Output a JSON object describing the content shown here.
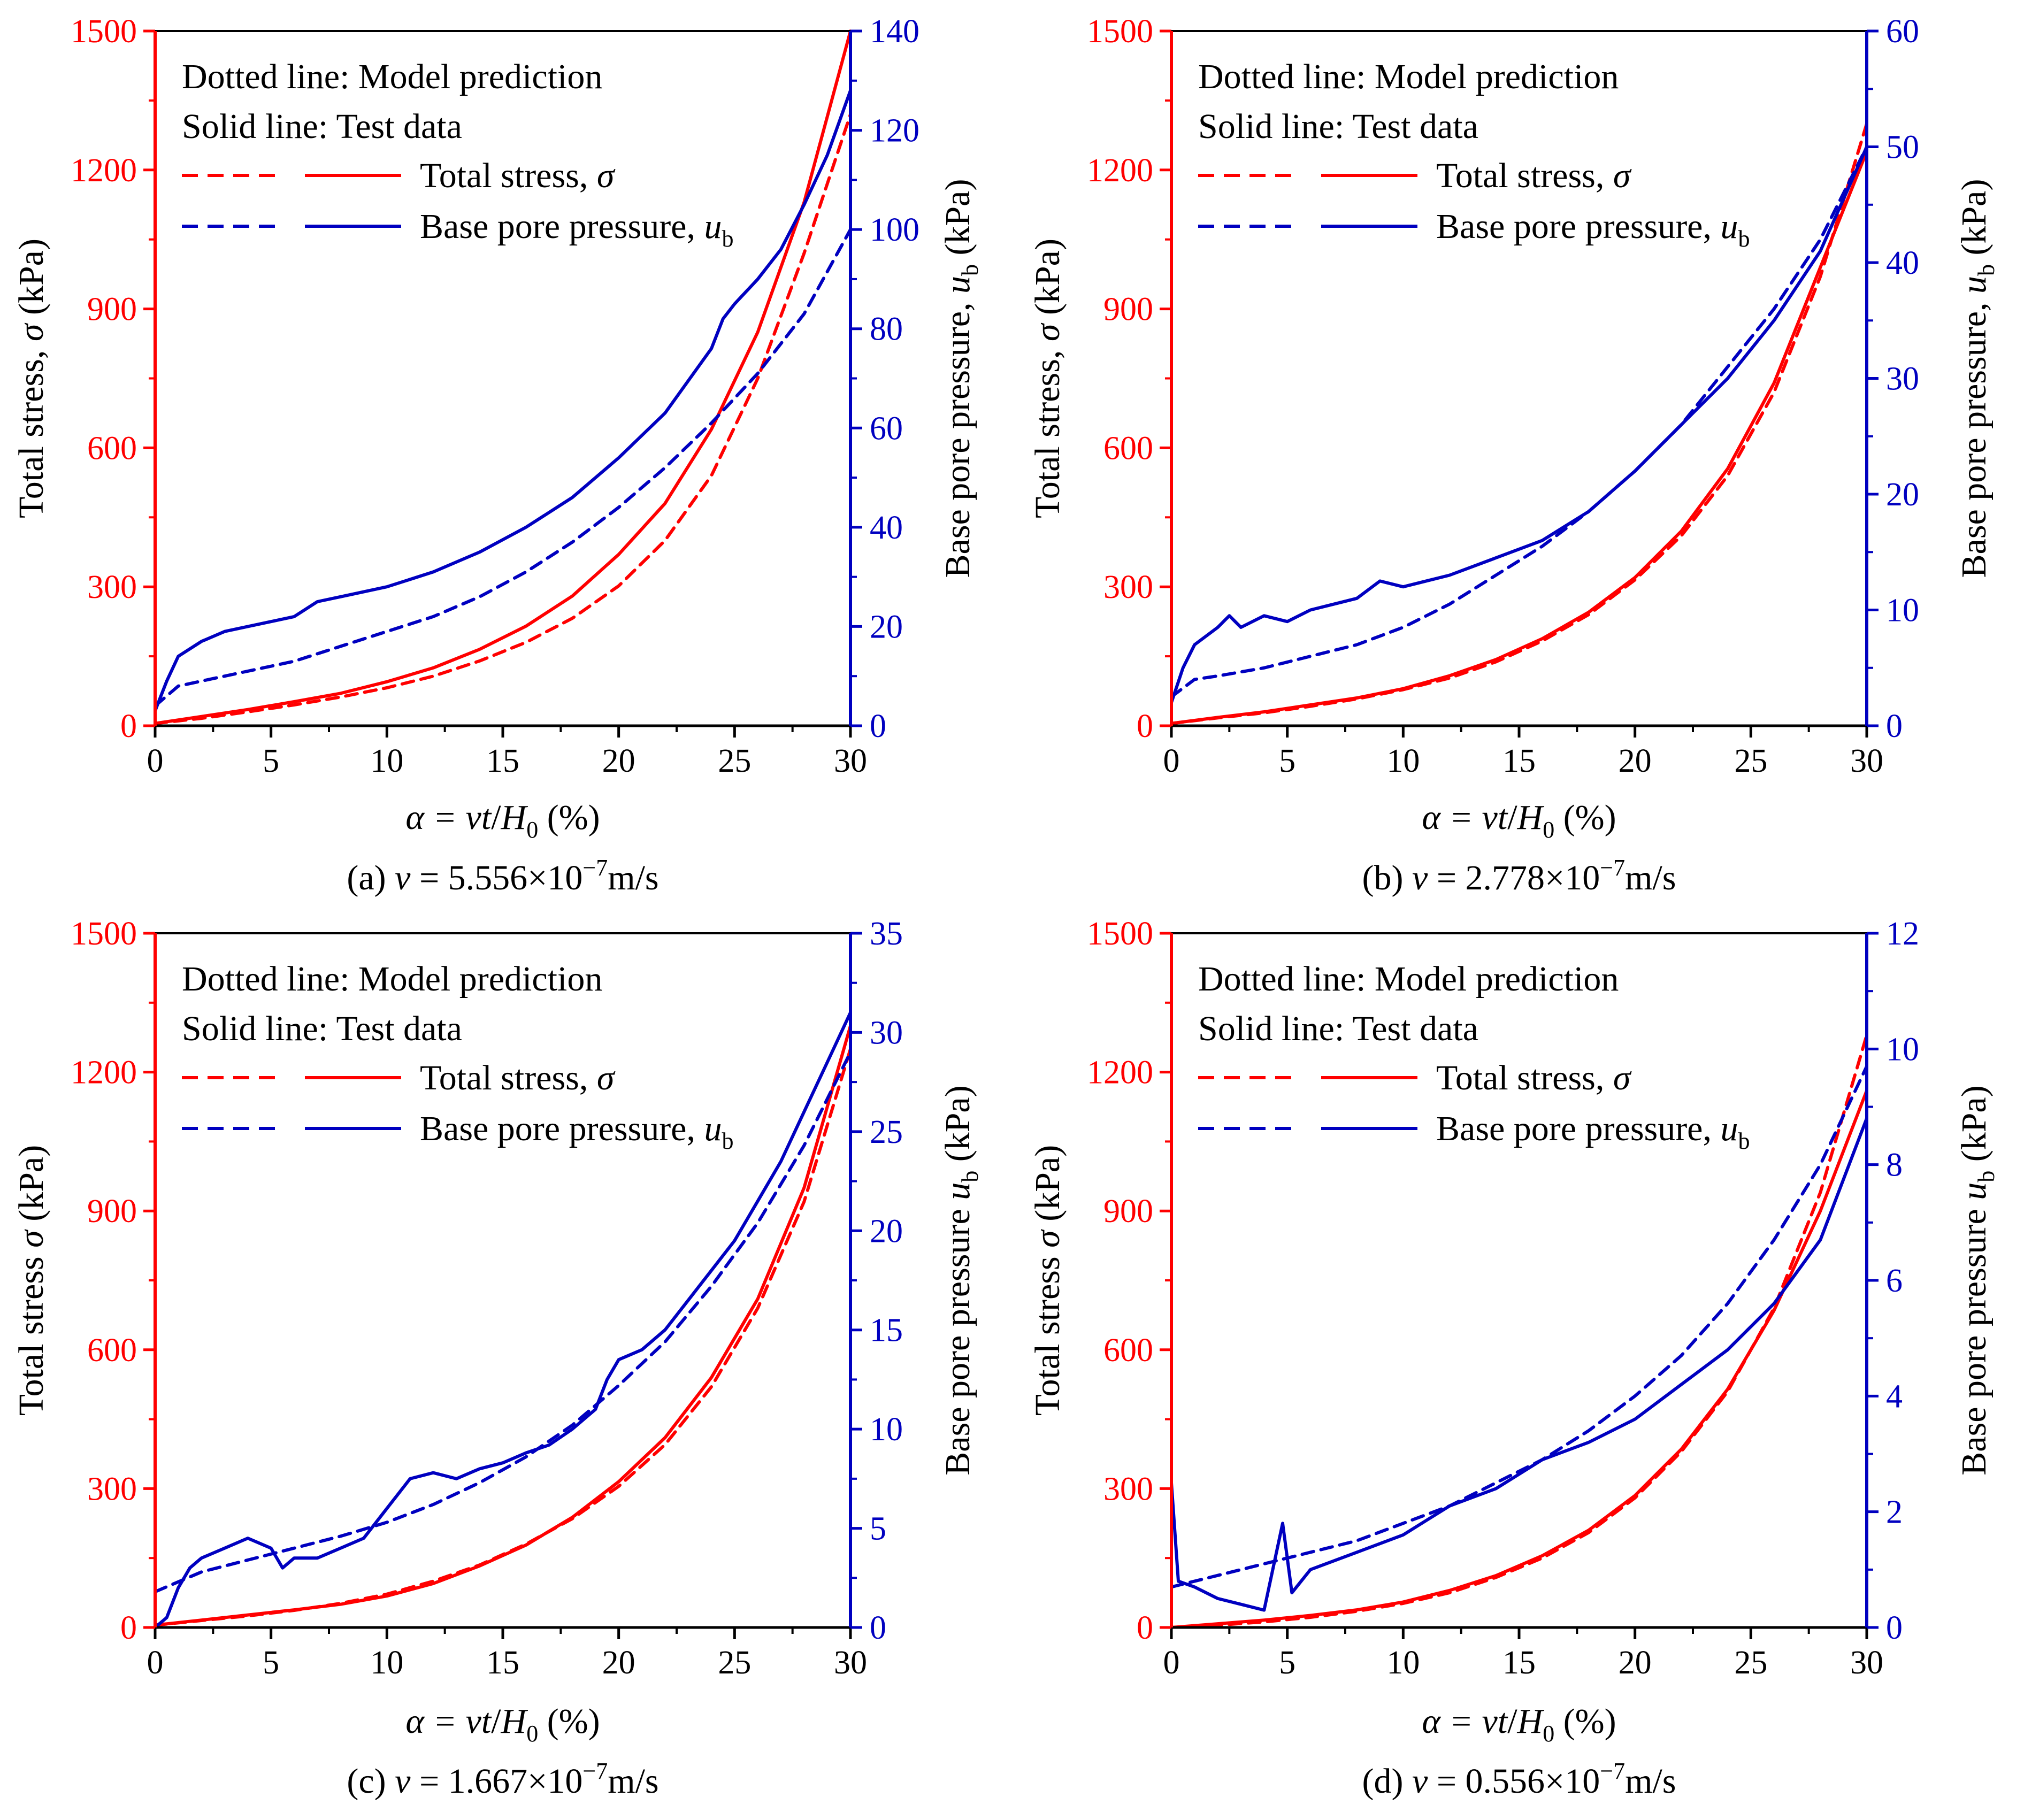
{
  "colors": {
    "stress": "#ff0000",
    "pore": "#0000c0",
    "axis": "#000000"
  },
  "labels": {
    "x_axis_lhs": "α = ",
    "x_axis_v": "vt",
    "x_axis_slash": "/",
    "x_axis_H": "H",
    "x_axis_sub": "0",
    "x_axis_unit": " (%)",
    "y_left_prefix": "Total stress",
    "y_left_sym": "σ",
    "y_left_unit": " (kPa)",
    "y_right_prefix": "Base pore pressure",
    "y_right_sym": "u",
    "y_right_sub": "b",
    "y_right_unit": " (kPa)",
    "legend_dotted": "Dotted line: Model prediction",
    "legend_solid": "Solid line: Test data",
    "legend_stress": "Total stress, ",
    "legend_stress_sym": "σ",
    "legend_pore": "Base pore pressure, ",
    "legend_pore_sym": "u",
    "legend_pore_sub": "b"
  },
  "chart_data": [
    {
      "type": "line",
      "panel": "a",
      "caption_prefix": "(a) ",
      "caption_v": "v",
      "caption_value": " = 5.556×10",
      "caption_exp": "−7",
      "caption_unit": "m/s",
      "y_left_comma": true,
      "xlim": [
        0,
        30
      ],
      "xticks": [
        0,
        5,
        10,
        15,
        20,
        25,
        30
      ],
      "ylim_left": [
        0,
        1500
      ],
      "yticks_left": [
        0,
        300,
        600,
        900,
        1200,
        1500
      ],
      "ylim_right": [
        0,
        140
      ],
      "yticks_right": [
        0,
        20,
        40,
        60,
        80,
        100,
        120,
        140
      ],
      "series": [
        {
          "name": "Total stress model",
          "axis": "left",
          "style": "dashed",
          "color": "stress",
          "x": [
            0,
            2,
            4,
            6,
            8,
            10,
            12,
            14,
            16,
            18,
            20,
            22,
            24,
            26,
            28,
            30
          ],
          "y": [
            5,
            16,
            30,
            45,
            62,
            82,
            107,
            140,
            180,
            232,
            302,
            400,
            540,
            750,
            1020,
            1320
          ]
        },
        {
          "name": "Total stress test",
          "axis": "left",
          "style": "solid",
          "color": "stress",
          "x": [
            0,
            2,
            4,
            6,
            8,
            10,
            12,
            14,
            16,
            18,
            20,
            22,
            24,
            26,
            28,
            30
          ],
          "y": [
            5,
            20,
            35,
            52,
            70,
            95,
            125,
            165,
            215,
            280,
            370,
            480,
            640,
            850,
            1130,
            1500
          ]
        },
        {
          "name": "Base pore pressure model",
          "axis": "right",
          "style": "dashed",
          "color": "pore",
          "x": [
            0,
            1,
            2,
            4,
            6,
            8,
            10,
            12,
            14,
            16,
            18,
            20,
            22,
            24,
            26,
            28,
            30
          ],
          "y": [
            4,
            8,
            9,
            11,
            13,
            16,
            19,
            22,
            26,
            31,
            37,
            44,
            52,
            61,
            71,
            83,
            100
          ]
        },
        {
          "name": "Base pore pressure test",
          "axis": "right",
          "style": "solid",
          "color": "pore",
          "x": [
            0,
            0.5,
            1,
            2,
            3,
            4,
            5,
            6,
            7,
            8,
            10,
            12,
            14,
            16,
            18,
            20,
            22,
            24,
            24.5,
            25,
            26,
            27,
            28,
            29,
            30
          ],
          "y": [
            3,
            9,
            14,
            17,
            19,
            20,
            21,
            22,
            25,
            26,
            28,
            31,
            35,
            40,
            46,
            54,
            63,
            76,
            82,
            85,
            90,
            96,
            105,
            115,
            128
          ]
        }
      ]
    },
    {
      "type": "line",
      "panel": "b",
      "caption_prefix": "(b) ",
      "caption_v": "v",
      "caption_value": " = 2.778×10",
      "caption_exp": "−7",
      "caption_unit": "m/s",
      "y_left_comma": true,
      "xlim": [
        0,
        30
      ],
      "xticks": [
        0,
        5,
        10,
        15,
        20,
        25,
        30
      ],
      "ylim_left": [
        0,
        1500
      ],
      "yticks_left": [
        0,
        300,
        600,
        900,
        1200,
        1500
      ],
      "ylim_right": [
        0,
        60
      ],
      "yticks_right": [
        0,
        10,
        20,
        30,
        40,
        50,
        60
      ],
      "series": [
        {
          "name": "Total stress model",
          "axis": "left",
          "style": "dashed",
          "color": "stress",
          "x": [
            0,
            2,
            4,
            6,
            8,
            10,
            12,
            14,
            16,
            18,
            20,
            22,
            24,
            26,
            28,
            30
          ],
          "y": [
            5,
            17,
            28,
            42,
            58,
            78,
            103,
            138,
            183,
            240,
            315,
            410,
            540,
            720,
            970,
            1300
          ]
        },
        {
          "name": "Total stress test",
          "axis": "left",
          "style": "solid",
          "color": "stress",
          "x": [
            0,
            2,
            4,
            6,
            8,
            10,
            12,
            14,
            16,
            18,
            20,
            22,
            24,
            26,
            28,
            30
          ],
          "y": [
            5,
            18,
            30,
            45,
            60,
            80,
            108,
            143,
            188,
            245,
            320,
            420,
            555,
            740,
            990,
            1240
          ]
        },
        {
          "name": "Base pore pressure model",
          "axis": "right",
          "style": "dashed",
          "color": "pore",
          "x": [
            0,
            1,
            2,
            4,
            6,
            8,
            10,
            12,
            14,
            16,
            18,
            20,
            22,
            24,
            26,
            28,
            30
          ],
          "y": [
            2.5,
            4,
            4.3,
            5,
            6,
            7,
            8.5,
            10.5,
            13,
            15.5,
            18.5,
            22,
            26,
            31,
            36,
            42,
            50
          ]
        },
        {
          "name": "Base pore pressure test",
          "axis": "right",
          "style": "solid",
          "color": "pore",
          "x": [
            0,
            0.5,
            1,
            2,
            2.5,
            3,
            4,
            5,
            6,
            7,
            8,
            9,
            10,
            12,
            14,
            16,
            18,
            20,
            22,
            24,
            26,
            28,
            30
          ],
          "y": [
            2,
            5,
            7,
            8.5,
            9.5,
            8.5,
            9.5,
            9,
            10,
            10.5,
            11,
            12.5,
            12,
            13,
            14.5,
            16,
            18.5,
            22,
            26,
            30,
            35,
            41,
            50
          ]
        }
      ]
    },
    {
      "type": "line",
      "panel": "c",
      "caption_prefix": "(c) ",
      "caption_v": "v",
      "caption_value": " = 1.667×10",
      "caption_exp": "−7",
      "caption_unit": "m/s",
      "y_left_comma": false,
      "xlim": [
        0,
        30
      ],
      "xticks": [
        0,
        5,
        10,
        15,
        20,
        25,
        30
      ],
      "ylim_left": [
        0,
        1500
      ],
      "yticks_left": [
        0,
        300,
        600,
        900,
        1200,
        1500
      ],
      "ylim_right": [
        0,
        35
      ],
      "yticks_right": [
        0,
        5,
        10,
        15,
        20,
        25,
        30,
        35
      ],
      "series": [
        {
          "name": "Total stress model",
          "axis": "left",
          "style": "dashed",
          "color": "stress",
          "x": [
            0,
            2,
            4,
            6,
            8,
            10,
            12,
            14,
            16,
            18,
            20,
            22,
            24,
            26,
            28,
            30
          ],
          "y": [
            5,
            15,
            25,
            37,
            52,
            72,
            100,
            135,
            180,
            235,
            305,
            395,
            520,
            690,
            920,
            1250
          ]
        },
        {
          "name": "Total stress test",
          "axis": "left",
          "style": "solid",
          "color": "stress",
          "x": [
            0,
            2,
            4,
            6,
            8,
            10,
            12,
            14,
            16,
            18,
            20,
            22,
            24,
            26,
            28,
            30
          ],
          "y": [
            5,
            16,
            27,
            38,
            50,
            68,
            95,
            133,
            178,
            238,
            315,
            410,
            540,
            710,
            950,
            1300
          ]
        },
        {
          "name": "Base pore pressure model",
          "axis": "right",
          "style": "dashed",
          "color": "pore",
          "x": [
            0,
            2,
            4,
            6,
            8,
            10,
            12,
            14,
            16,
            18,
            20,
            22,
            24,
            26,
            28,
            30
          ],
          "y": [
            1.8,
            2.8,
            3.4,
            4,
            4.6,
            5.3,
            6.2,
            7.3,
            8.6,
            10.2,
            12.2,
            14.4,
            17.2,
            20.4,
            24.3,
            29
          ]
        },
        {
          "name": "Base pore pressure test",
          "axis": "right",
          "style": "solid",
          "color": "pore",
          "x": [
            0,
            0.5,
            1,
            1.5,
            2,
            3,
            4,
            5,
            5.5,
            6,
            7,
            8,
            9,
            10,
            11,
            12,
            13,
            14,
            15,
            16,
            17,
            18,
            19,
            19.5,
            20,
            21,
            22,
            23,
            24,
            25,
            26,
            27,
            28,
            29,
            30
          ],
          "y": [
            0,
            0.5,
            2,
            3,
            3.5,
            4,
            4.5,
            4,
            3,
            3.5,
            3.5,
            4,
            4.5,
            6,
            7.5,
            7.8,
            7.5,
            8,
            8.3,
            8.8,
            9.2,
            10,
            11,
            12.5,
            13.5,
            14,
            15,
            16.5,
            18,
            19.5,
            21.5,
            23.5,
            26,
            28.5,
            31
          ]
        }
      ]
    },
    {
      "type": "line",
      "panel": "d",
      "caption_prefix": "(d) ",
      "caption_v": "v",
      "caption_value": " = 0.556×10",
      "caption_exp": "−7",
      "caption_unit": "m/s",
      "y_left_comma": false,
      "xlim": [
        0,
        30
      ],
      "xticks": [
        0,
        5,
        10,
        15,
        20,
        25,
        30
      ],
      "ylim_left": [
        0,
        1500
      ],
      "yticks_left": [
        0,
        300,
        600,
        900,
        1200,
        1500
      ],
      "ylim_right": [
        0,
        12
      ],
      "yticks_right": [
        0,
        2,
        4,
        6,
        8,
        10,
        12
      ],
      "series": [
        {
          "name": "Total stress model",
          "axis": "left",
          "style": "dashed",
          "color": "stress",
          "x": [
            0,
            2,
            4,
            6,
            8,
            10,
            12,
            14,
            16,
            18,
            20,
            22,
            24,
            26,
            28,
            30
          ],
          "y": [
            0,
            5,
            12,
            22,
            35,
            52,
            75,
            108,
            150,
            205,
            280,
            380,
            510,
            690,
            940,
            1280
          ]
        },
        {
          "name": "Total stress test",
          "axis": "left",
          "style": "solid",
          "color": "stress",
          "x": [
            0,
            2,
            4,
            6,
            8,
            10,
            12,
            14,
            16,
            18,
            20,
            22,
            24,
            26,
            28,
            30
          ],
          "y": [
            0,
            8,
            16,
            26,
            38,
            55,
            80,
            112,
            155,
            210,
            285,
            385,
            515,
            685,
            900,
            1160
          ]
        },
        {
          "name": "Base pore pressure model",
          "axis": "right",
          "style": "dashed",
          "color": "pore",
          "x": [
            0,
            2,
            4,
            6,
            8,
            10,
            12,
            14,
            16,
            18,
            20,
            22,
            24,
            26,
            28,
            30
          ],
          "y": [
            0.7,
            0.9,
            1.1,
            1.3,
            1.5,
            1.8,
            2.1,
            2.5,
            2.9,
            3.4,
            4,
            4.7,
            5.6,
            6.7,
            8,
            9.7
          ]
        },
        {
          "name": "Base pore pressure test",
          "axis": "right",
          "style": "solid",
          "color": "pore",
          "x": [
            0,
            0.3,
            1,
            2,
            3,
            4,
            4.8,
            5.2,
            6,
            8,
            10,
            12,
            14,
            16,
            18,
            20,
            22,
            24,
            26,
            28,
            30
          ],
          "y": [
            2.5,
            0.8,
            0.7,
            0.5,
            0.4,
            0.3,
            1.8,
            0.6,
            1,
            1.3,
            1.6,
            2.1,
            2.4,
            2.9,
            3.2,
            3.6,
            4.2,
            4.8,
            5.6,
            6.7,
            8.8
          ]
        }
      ]
    }
  ]
}
